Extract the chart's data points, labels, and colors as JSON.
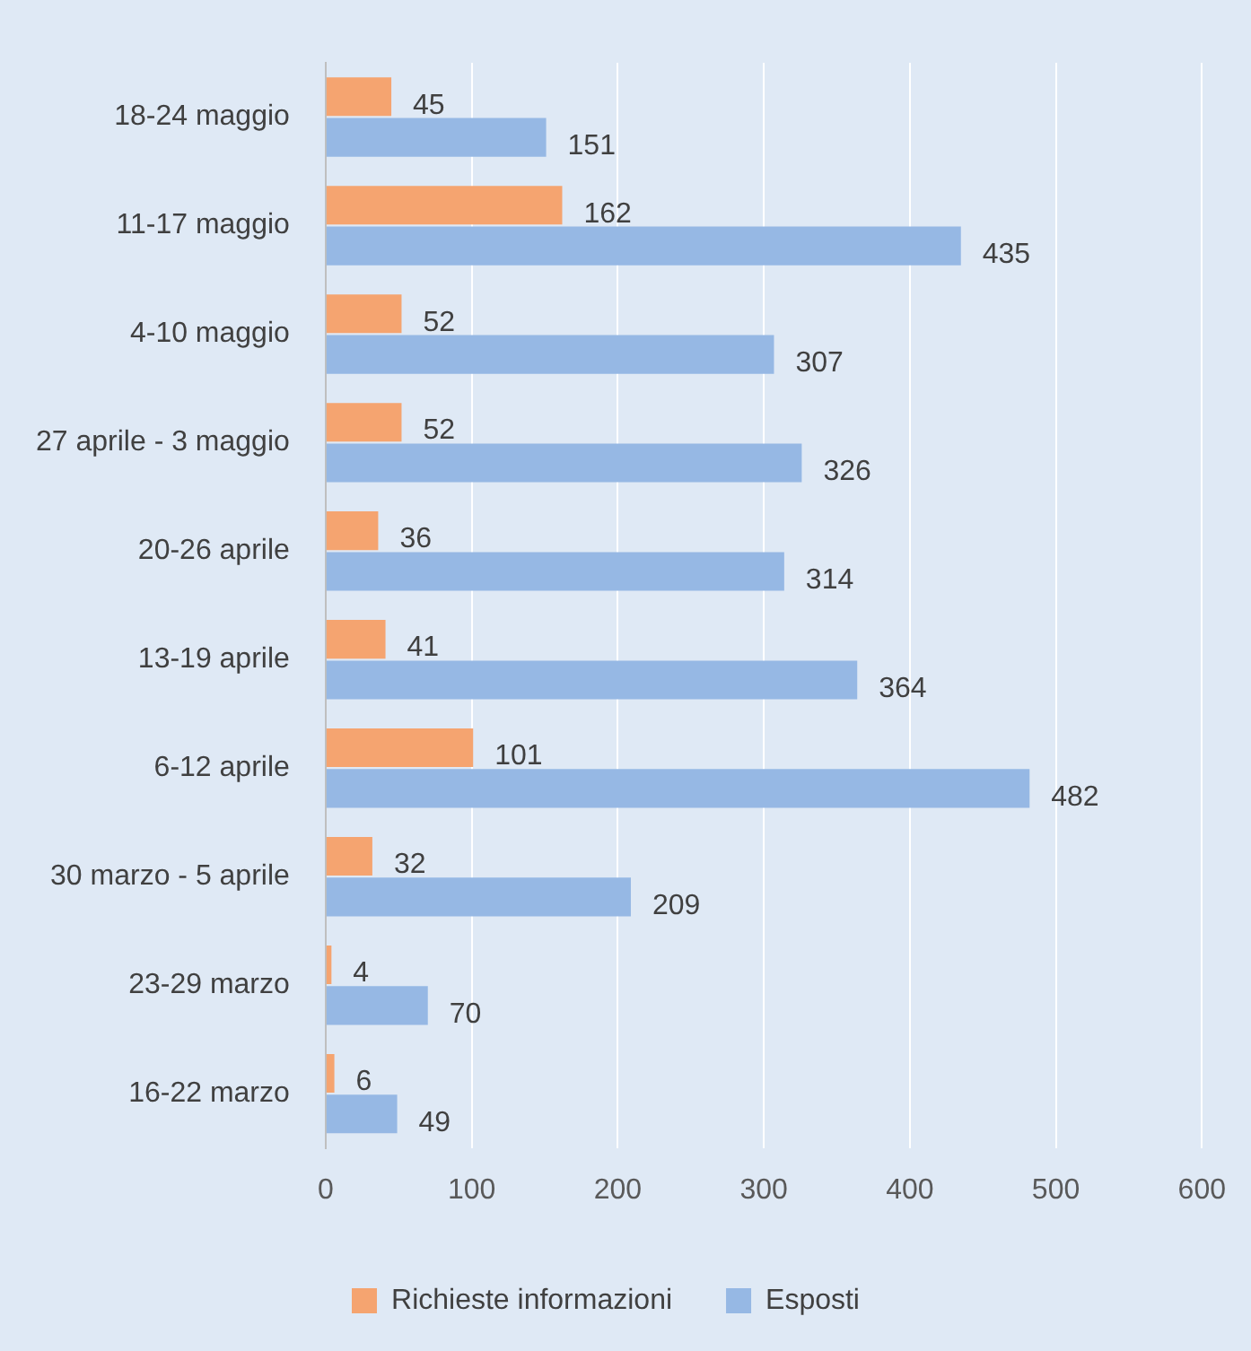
{
  "chart_data": {
    "type": "bar",
    "orientation": "horizontal",
    "categories": [
      "18-24 maggio",
      "11-17 maggio",
      "4-10 maggio",
      "27 aprile - 3 maggio",
      "20-26 aprile",
      "13-19 aprile",
      "6-12 aprile",
      "30 marzo - 5 aprile",
      "23-29 marzo",
      "16-22 marzo"
    ],
    "series": [
      {
        "name": "Richieste informazioni",
        "color": "#f5a470",
        "values": [
          45,
          162,
          52,
          52,
          36,
          41,
          101,
          32,
          4,
          6
        ]
      },
      {
        "name": "Esposti",
        "color": "#96b8e4",
        "values": [
          151,
          435,
          307,
          326,
          314,
          364,
          482,
          209,
          70,
          49
        ]
      }
    ],
    "xlim": [
      0,
      600
    ],
    "xticks": [
      0,
      100,
      200,
      300,
      400,
      500,
      600
    ],
    "grid": "x",
    "legend": "bottom",
    "data_labels": true
  }
}
